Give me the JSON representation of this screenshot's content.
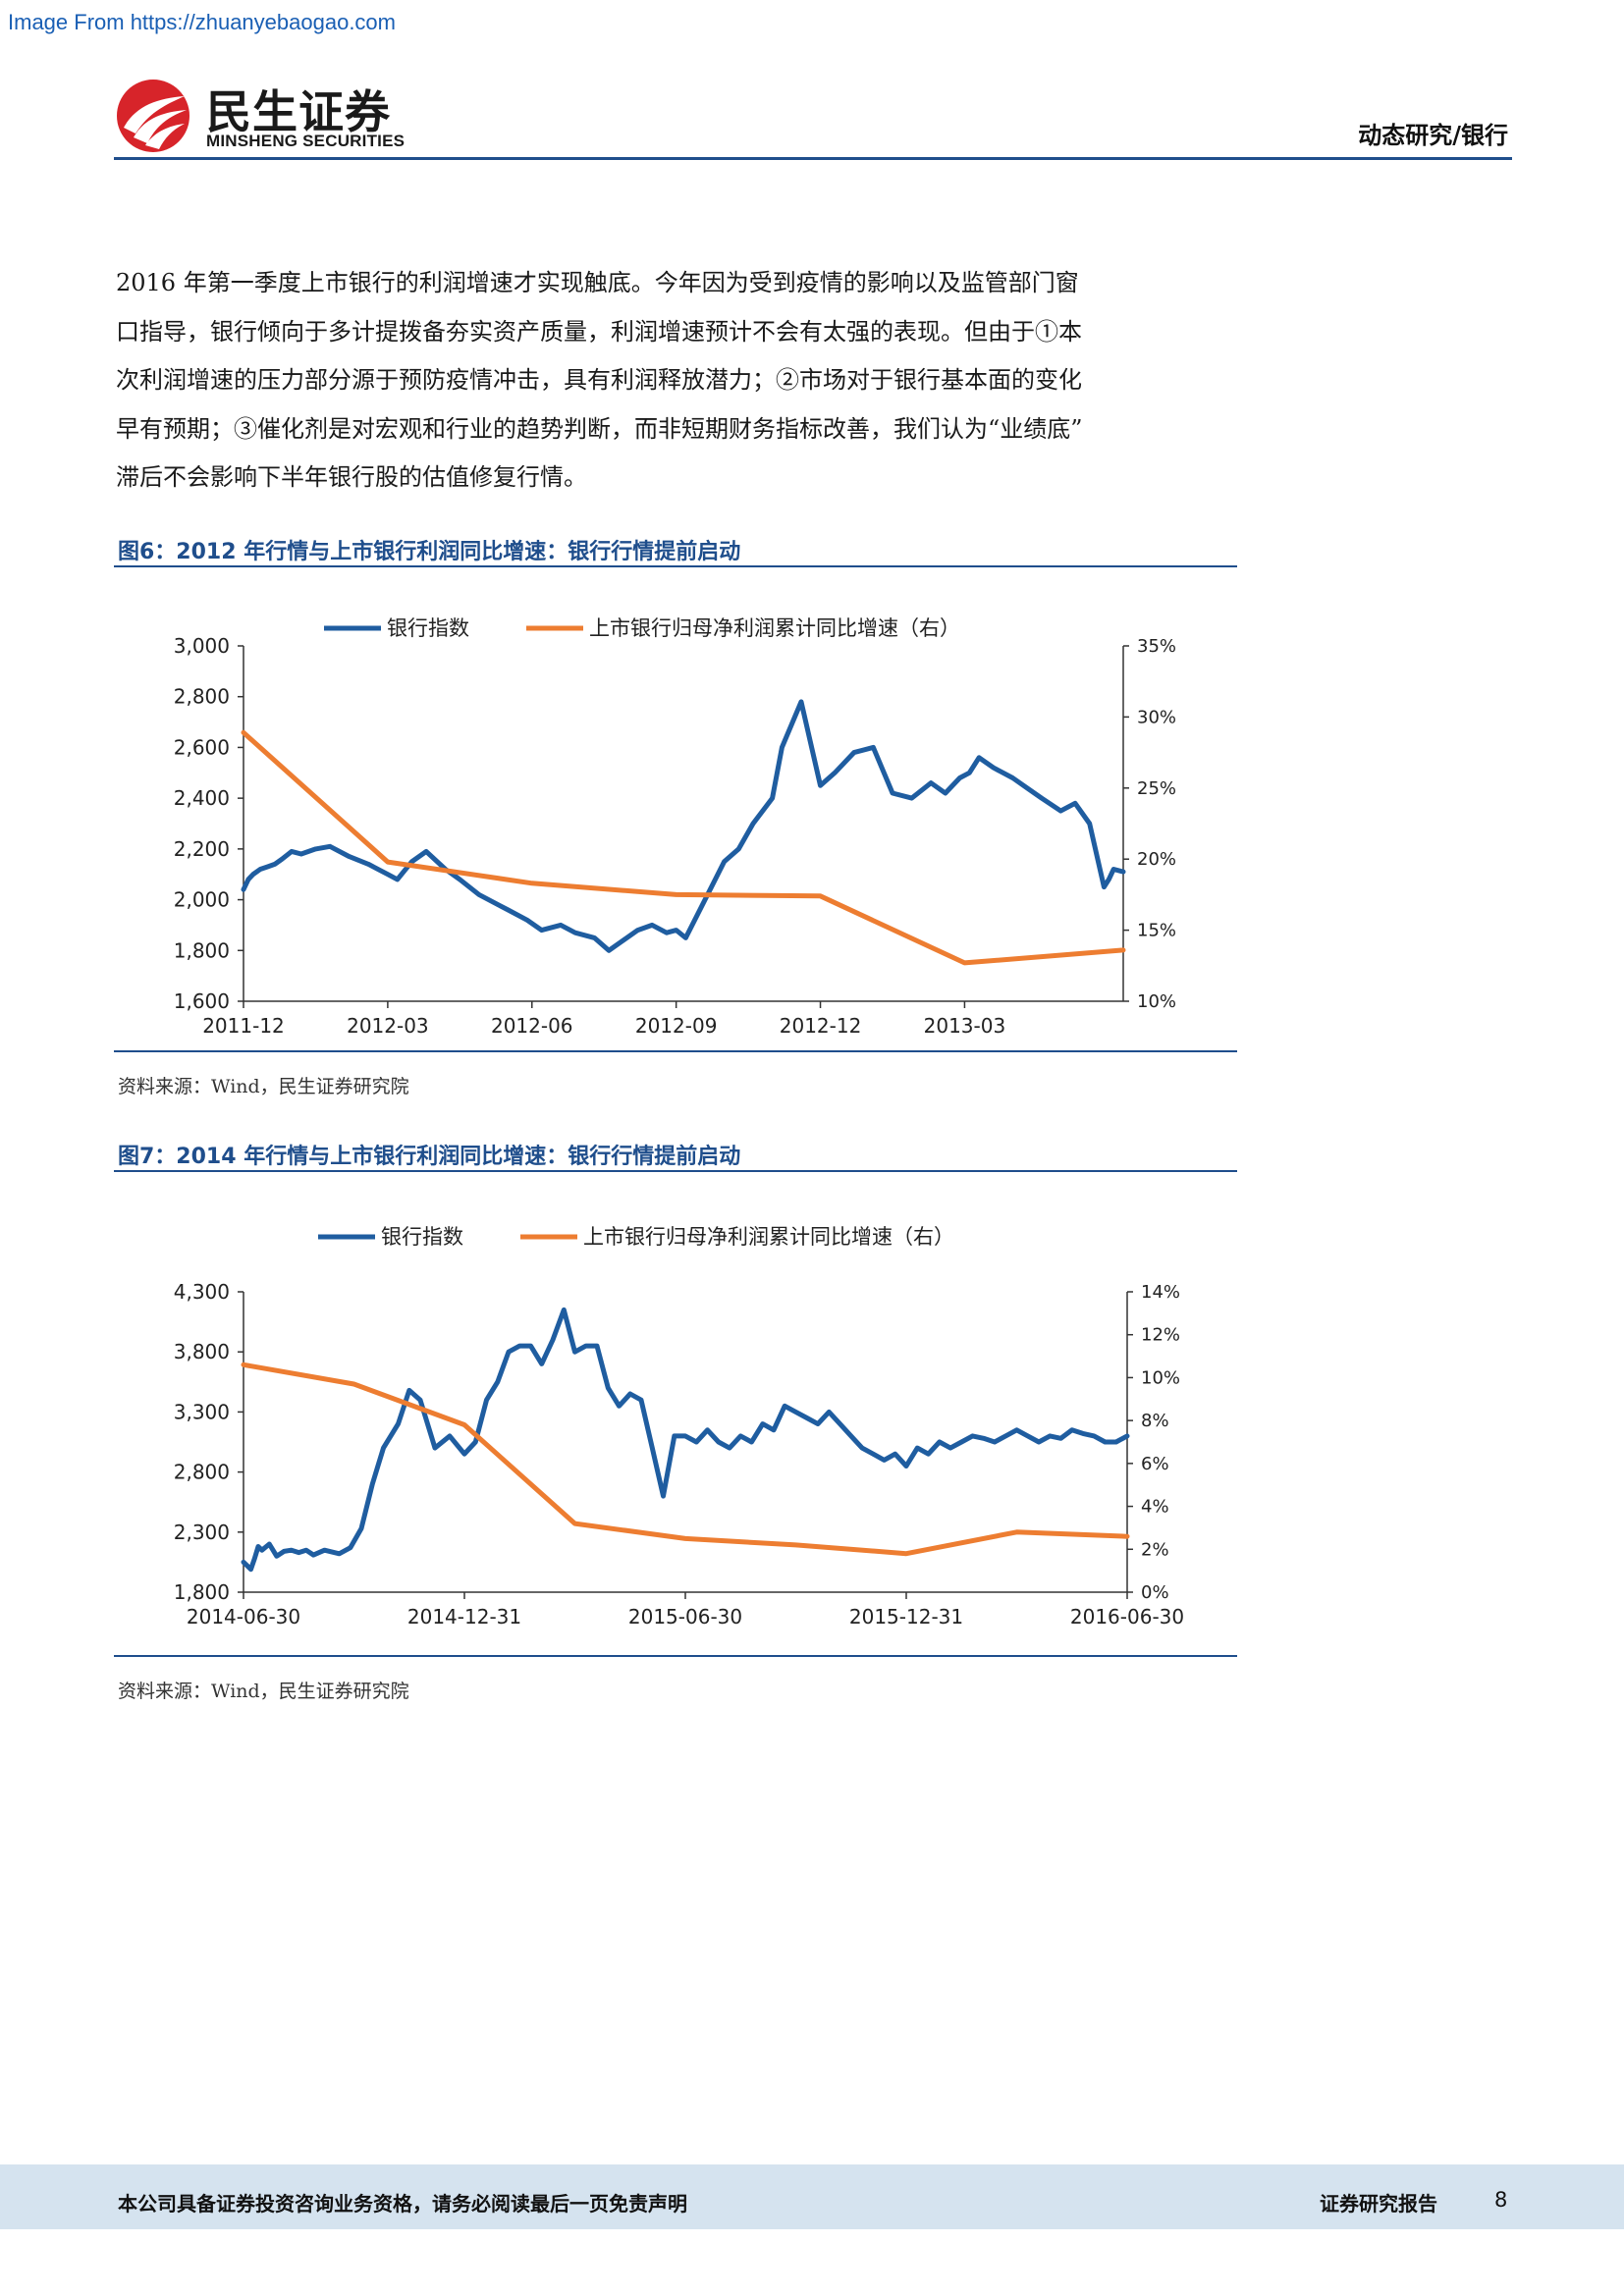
{
  "banner": "Image From https://zhuanyebaogao.com",
  "brand": {
    "name_zh": "民生证券",
    "name_en": "MINSHENG SECURITIES",
    "logo_color": "#d7242a"
  },
  "header": {
    "category": "动态研究/银行"
  },
  "body": {
    "lines": [
      "2016 年第一季度上市银行的利润增速才实现触底。今年因为受到疫情的影响以及监管部门窗",
      "口指导，银行倾向于多计提拨备夯实资产质量，利润增速预计不会有太强的表现。但由于①本",
      "次利润增速的压力部分源于预防疫情冲击，具有利润释放潜力；②市场对于银行基本面的变化",
      "早有预期；③催化剂是对宏观和行业的趋势判断，而非短期财务指标改善，我们认为“业绩底”",
      "滞后不会影响下半年银行股的估值修复行情。"
    ]
  },
  "figures": [
    {
      "title": "图6：2012 年行情与上市银行利润同比增速：银行行情提前启动",
      "source": "资料来源：Wind，民生证券研究院"
    },
    {
      "title": "图7：2014 年行情与上市银行利润同比增速：银行行情提前启动",
      "source": "资料来源：Wind，民生证券研究院"
    }
  ],
  "chart_data": [
    {
      "type": "line",
      "legend_position": "top",
      "grid": false,
      "series": [
        {
          "name": "银行指数",
          "axis": "left",
          "color": "#1f5da0",
          "x": [
            0,
            0.1,
            0.2,
            0.35,
            0.5,
            0.65,
            0.8,
            1,
            1.2,
            1.5,
            1.8,
            2.2,
            2.6,
            3,
            3.2,
            3.5,
            3.8,
            4.2,
            4.5,
            4.9,
            5.2,
            5.5,
            5.9,
            6.2,
            6.6,
            6.9,
            7.3,
            7.6,
            7.9,
            8.2,
            8.5,
            8.8,
            9,
            9.2,
            9.6,
            10,
            10.3,
            10.6,
            11,
            11.2,
            11.6,
            12,
            12.3,
            12.7,
            13.1,
            13.5,
            13.9,
            14.3,
            14.6,
            14.9,
            15.1,
            15.3,
            15.6,
            16,
            16.3,
            16.6,
            17,
            17.3,
            17.6,
            17.9,
            18,
            18.1,
            18.3
          ],
          "values": [
            2040,
            2080,
            2100,
            2120,
            2130,
            2140,
            2160,
            2190,
            2180,
            2200,
            2210,
            2170,
            2140,
            2100,
            2080,
            2150,
            2190,
            2120,
            2080,
            2020,
            1990,
            1960,
            1920,
            1880,
            1900,
            1870,
            1850,
            1800,
            1840,
            1880,
            1900,
            1870,
            1880,
            1850,
            2000,
            2150,
            2200,
            2300,
            2400,
            2600,
            2780,
            2450,
            2500,
            2580,
            2600,
            2420,
            2400,
            2460,
            2420,
            2480,
            2500,
            2560,
            2520,
            2480,
            2440,
            2400,
            2350,
            2380,
            2300,
            2050,
            2080,
            2120,
            2110
          ]
        },
        {
          "name": "上市银行归母净利润累计同比增速（右）",
          "axis": "right",
          "color": "#ed7d31",
          "x": [
            0,
            3,
            6,
            9,
            12,
            15,
            18.3
          ],
          "values": [
            28.9,
            19.8,
            18.3,
            17.5,
            17.4,
            12.7,
            13.6
          ]
        }
      ],
      "x_tick_labels": [
        "2011-12",
        "2012-03",
        "2012-06",
        "2012-09",
        "2012-12",
        "2013-03"
      ],
      "y_left": {
        "min": 1600,
        "max": 3000,
        "ticks": [
          "1,600",
          "1,800",
          "2,000",
          "2,200",
          "2,400",
          "2,600",
          "2,800",
          "3,000"
        ]
      },
      "y_right": {
        "min": 10,
        "max": 35,
        "ticks": [
          "10%",
          "15%",
          "20%",
          "25%",
          "30%",
          "35%"
        ]
      }
    },
    {
      "type": "line",
      "legend_position": "top",
      "grid": false,
      "series": [
        {
          "name": "银行指数",
          "axis": "left",
          "color": "#1f5da0",
          "x": [
            0,
            0.1,
            0.2,
            0.3,
            0.4,
            0.5,
            0.7,
            0.9,
            1.1,
            1.3,
            1.5,
            1.7,
            1.9,
            2.2,
            2.6,
            2.9,
            3.2,
            3.5,
            3.8,
            4.2,
            4.5,
            4.8,
            5.2,
            5.6,
            6.0,
            6.3,
            6.6,
            6.9,
            7.2,
            7.5,
            7.8,
            8.1,
            8.4,
            8.7,
            9.0,
            9.3,
            9.6,
            9.9,
            10.2,
            10.5,
            10.8,
            11.1,
            11.4,
            11.7,
            12.0,
            12.3,
            12.6,
            12.9,
            13.2,
            13.5,
            13.8,
            14.1,
            14.4,
            14.7,
            15.0,
            15.3,
            15.6,
            15.9,
            16.2,
            16.5,
            16.8,
            17.1,
            17.4,
            17.7,
            18.0,
            18.3,
            18.6,
            18.9,
            19.2,
            19.5,
            19.8,
            20.1,
            20.4,
            20.7,
            21.0,
            21.3,
            21.6,
            21.9,
            22.2,
            22.5,
            22.8,
            23.1,
            23.4,
            23.7,
            24.0
          ],
          "values": [
            2050,
            2020,
            1990,
            2080,
            2180,
            2150,
            2200,
            2100,
            2140,
            2150,
            2130,
            2150,
            2110,
            2150,
            2120,
            2170,
            2330,
            2700,
            3000,
            3200,
            3480,
            3400,
            3000,
            3100,
            2950,
            3050,
            3400,
            3550,
            3800,
            3850,
            3850,
            3700,
            3900,
            4150,
            3800,
            3850,
            3850,
            3500,
            3350,
            3450,
            3400,
            3000,
            2600,
            3100,
            3100,
            3050,
            3150,
            3050,
            3000,
            3100,
            3050,
            3200,
            3150,
            3350,
            3300,
            3250,
            3200,
            3300,
            3200,
            3100,
            3000,
            2950,
            2900,
            2950,
            2850,
            3000,
            2950,
            3050,
            3000,
            3050,
            3100,
            3080,
            3050,
            3100,
            3150,
            3100,
            3050,
            3100,
            3080,
            3150,
            3120,
            3100,
            3050,
            3050,
            3100
          ]
        },
        {
          "name": "上市银行归母净利润累计同比增速（右）",
          "axis": "right",
          "color": "#ed7d31",
          "x": [
            0,
            3,
            6,
            9,
            12,
            15,
            18,
            21,
            24
          ],
          "values": [
            10.6,
            9.7,
            7.8,
            3.2,
            2.5,
            2.2,
            1.8,
            2.8,
            2.6
          ]
        }
      ],
      "x_tick_labels": [
        "2014-06-30",
        "2014-12-31",
        "2015-06-30",
        "2015-12-31",
        "2016-06-30"
      ],
      "y_left": {
        "min": 1800,
        "max": 4300,
        "ticks": [
          "1,800",
          "2,300",
          "2,800",
          "3,300",
          "3,800",
          "4,300"
        ]
      },
      "y_right": {
        "min": 0,
        "max": 14,
        "ticks": [
          "0%",
          "2%",
          "4%",
          "6%",
          "8%",
          "10%",
          "12%",
          "14%"
        ]
      }
    }
  ],
  "footer": {
    "disclaimer": "本公司具备证券投资咨询业务资格，请务必阅读最后一页免责声明",
    "report_type": "证券研究报告",
    "page_number": "8",
    "background": "#d5e3ef"
  }
}
